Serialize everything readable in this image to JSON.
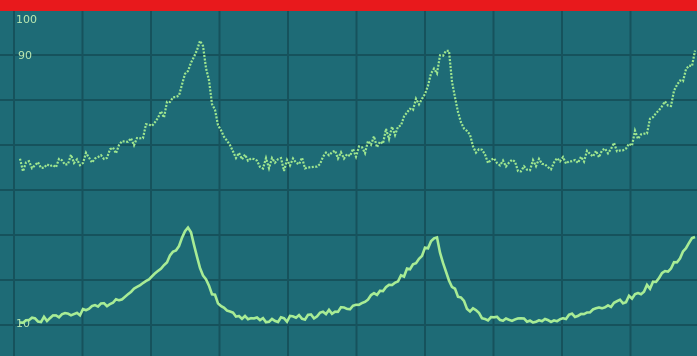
{
  "screen": {
    "labels": [
      "100",
      "90",
      "10"
    ]
  }
}
